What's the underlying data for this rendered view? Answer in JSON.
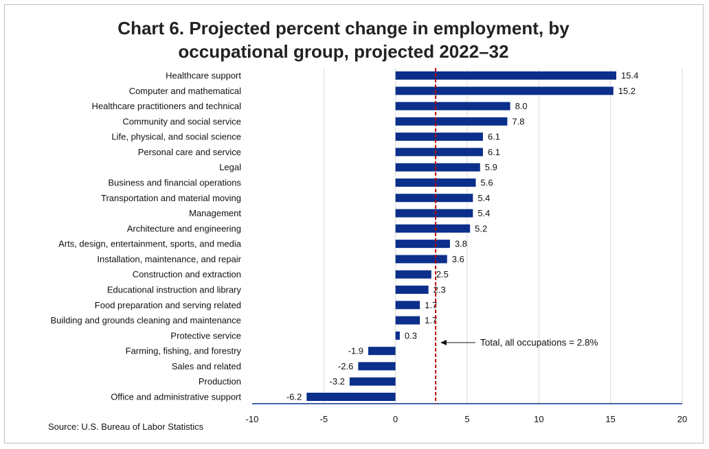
{
  "chart_data": {
    "type": "bar",
    "orientation": "horizontal",
    "title_lines": [
      "Chart 6. Projected percent change in employment, by",
      "occupational group, projected 2022–32"
    ],
    "categories": [
      "Healthcare support",
      "Computer and mathematical",
      "Healthcare practitioners and technical",
      "Community and social service",
      "Life, physical, and social science",
      "Personal care and service",
      "Legal",
      "Business and financial operations",
      "Transportation and material moving",
      "Management",
      "Architecture and engineering",
      "Arts, design, entertainment, sports, and media",
      "Installation, maintenance, and repair",
      "Construction and extraction",
      "Educational instruction and library",
      "Food preparation and serving related",
      "Building and grounds cleaning and maintenance",
      "Protective service",
      "Farming, fishing, and forestry",
      "Sales and related",
      "Production",
      "Office and administrative support"
    ],
    "values": [
      15.4,
      15.2,
      8.0,
      7.8,
      6.1,
      6.1,
      5.9,
      5.6,
      5.4,
      5.4,
      5.2,
      3.8,
      3.6,
      2.5,
      2.3,
      1.7,
      1.7,
      0.3,
      -1.9,
      -2.6,
      -3.2,
      -6.2
    ],
    "value_labels": [
      "15.4",
      "15.2",
      "8.0",
      "7.8",
      "6.1",
      "6.1",
      "5.9",
      "5.6",
      "5.4",
      "5.4",
      "5.2",
      "3.8",
      "3.6",
      "2.5",
      "2.3",
      "1.7",
      "1.7",
      "0.3",
      "-1.9",
      "-2.6",
      "-3.2",
      "-6.2"
    ],
    "xlim": [
      -10,
      20
    ],
    "xticks": [
      -10,
      -5,
      0,
      5,
      10,
      15,
      20
    ],
    "xtick_labels": [
      "-10",
      "-5",
      "0",
      "5",
      "10",
      "15",
      "20"
    ],
    "grid": "vertical",
    "reference_line": {
      "value": 2.8,
      "label": "Total, all occupations = 2.8%"
    },
    "colors": {
      "bar": "#0b2f8a",
      "reference_line": "#c00000",
      "grid": "#d9d9d9",
      "axis": "#0b2f8a"
    }
  },
  "source": "Source: U.S. Bureau of Labor Statistics"
}
